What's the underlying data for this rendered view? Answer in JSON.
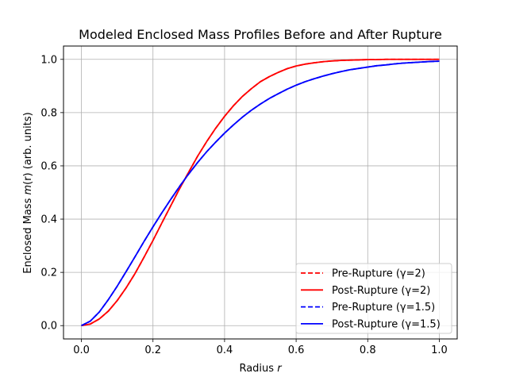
{
  "chart_data": {
    "type": "line",
    "title": "Modeled Enclosed Mass Profiles Before and After Rupture",
    "xlabel_text": "Radius ",
    "xlabel_var": "r",
    "ylabel_prefix": "Enclosed Mass ",
    "ylabel_var": "m",
    "ylabel_suffix": "(r) (arb. units)",
    "xlim": [
      -0.05,
      1.05
    ],
    "ylim": [
      -0.05,
      1.05
    ],
    "xticks": [
      0.0,
      0.2,
      0.4,
      0.6,
      0.8,
      1.0
    ],
    "xtick_labels": [
      "0.0",
      "0.2",
      "0.4",
      "0.6",
      "0.8",
      "1.0"
    ],
    "yticks": [
      0.0,
      0.2,
      0.4,
      0.6,
      0.8,
      1.0
    ],
    "ytick_labels": [
      "0.0",
      "0.2",
      "0.4",
      "0.6",
      "0.8",
      "1.0"
    ],
    "grid": true,
    "legend_position": "lower-right",
    "x": [
      0.0,
      0.025,
      0.05,
      0.075,
      0.1,
      0.125,
      0.15,
      0.175,
      0.2,
      0.225,
      0.25,
      0.275,
      0.3,
      0.325,
      0.35,
      0.375,
      0.4,
      0.425,
      0.45,
      0.475,
      0.5,
      0.525,
      0.55,
      0.575,
      0.6,
      0.625,
      0.65,
      0.675,
      0.7,
      0.725,
      0.75,
      0.775,
      0.8,
      0.825,
      0.85,
      0.875,
      0.9,
      0.925,
      0.95,
      0.975,
      1.0
    ],
    "series": [
      {
        "name": "Pre-Rupture (γ=2)",
        "color": "#ff0000",
        "style": "dashed",
        "values": [
          0.0,
          0.006,
          0.025,
          0.054,
          0.094,
          0.142,
          0.196,
          0.257,
          0.32,
          0.386,
          0.451,
          0.516,
          0.577,
          0.637,
          0.691,
          0.741,
          0.786,
          0.826,
          0.861,
          0.89,
          0.916,
          0.935,
          0.951,
          0.965,
          0.975,
          0.982,
          0.987,
          0.991,
          0.994,
          0.996,
          0.997,
          0.998,
          0.999,
          0.999,
          1.0,
          1.0,
          1.0,
          1.0,
          1.0,
          1.0,
          1.0
        ]
      },
      {
        "name": "Post-Rupture (γ=2)",
        "color": "#ff0000",
        "style": "solid",
        "values": [
          0.0,
          0.006,
          0.025,
          0.054,
          0.094,
          0.142,
          0.196,
          0.257,
          0.32,
          0.386,
          0.451,
          0.516,
          0.577,
          0.637,
          0.691,
          0.741,
          0.786,
          0.826,
          0.861,
          0.89,
          0.916,
          0.935,
          0.951,
          0.965,
          0.975,
          0.982,
          0.987,
          0.991,
          0.994,
          0.996,
          0.997,
          0.998,
          0.999,
          0.999,
          1.0,
          1.0,
          1.0,
          1.0,
          1.0,
          1.0,
          1.0
        ]
      },
      {
        "name": "Pre-Rupture (γ=1.5)",
        "color": "#0000ff",
        "style": "dashed",
        "values": [
          0.0,
          0.017,
          0.051,
          0.097,
          0.148,
          0.203,
          0.259,
          0.316,
          0.371,
          0.424,
          0.475,
          0.524,
          0.57,
          0.613,
          0.653,
          0.689,
          0.723,
          0.754,
          0.783,
          0.809,
          0.832,
          0.853,
          0.871,
          0.888,
          0.903,
          0.916,
          0.927,
          0.937,
          0.946,
          0.954,
          0.961,
          0.966,
          0.971,
          0.976,
          0.979,
          0.983,
          0.986,
          0.988,
          0.99,
          0.992,
          0.993
        ]
      },
      {
        "name": "Post-Rupture (γ=1.5)",
        "color": "#0000ff",
        "style": "solid",
        "values": [
          0.0,
          0.017,
          0.051,
          0.097,
          0.148,
          0.203,
          0.259,
          0.316,
          0.371,
          0.424,
          0.475,
          0.524,
          0.57,
          0.613,
          0.653,
          0.689,
          0.723,
          0.754,
          0.783,
          0.809,
          0.832,
          0.853,
          0.871,
          0.888,
          0.903,
          0.916,
          0.927,
          0.937,
          0.946,
          0.954,
          0.961,
          0.966,
          0.971,
          0.976,
          0.979,
          0.983,
          0.986,
          0.988,
          0.99,
          0.992,
          0.993
        ]
      }
    ]
  }
}
